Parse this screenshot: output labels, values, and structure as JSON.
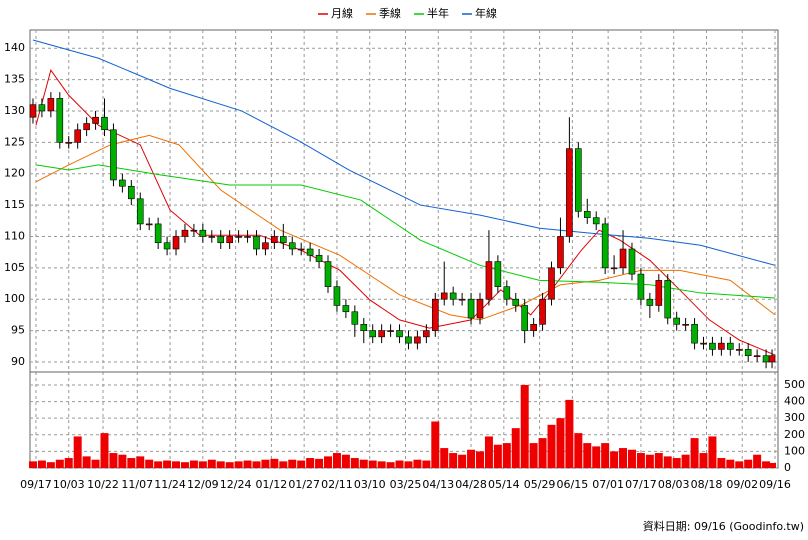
{
  "chart_data": {
    "type": "candlestick",
    "legend": "top",
    "grid": true,
    "up_color": "#e00000",
    "down_color": "#00b000",
    "volume_color": "#ee0000",
    "footer": "資料日期: 09/16  (Goodinfo.tw)",
    "xlim": [
      -1,
      250
    ],
    "xticks": [
      {
        "value": 1,
        "label": "09/17"
      },
      {
        "value": 12,
        "label": "10/03"
      },
      {
        "value": 23.5,
        "label": "10/22"
      },
      {
        "value": 35,
        "label": "11/07"
      },
      {
        "value": 46,
        "label": "11/24"
      },
      {
        "value": 57,
        "label": "12/09"
      },
      {
        "value": 68,
        "label": "12/24"
      },
      {
        "value": 80,
        "label": "01/12"
      },
      {
        "value": 91,
        "label": "01/27"
      },
      {
        "value": 102,
        "label": "02/11"
      },
      {
        "value": 113,
        "label": "03/10"
      },
      {
        "value": 125,
        "label": "03/25"
      },
      {
        "value": 136,
        "label": "04/13"
      },
      {
        "value": 147,
        "label": "04/28"
      },
      {
        "value": 158,
        "label": "05/14"
      },
      {
        "value": 170,
        "label": "05/29"
      },
      {
        "value": 181,
        "label": "06/15"
      },
      {
        "value": 193,
        "label": "07/01"
      },
      {
        "value": 204,
        "label": "07/17"
      },
      {
        "value": 215,
        "label": "08/03"
      },
      {
        "value": 226,
        "label": "08/18"
      },
      {
        "value": 238,
        "label": "09/02"
      },
      {
        "value": 249,
        "label": "09/16"
      }
    ],
    "ylim": [
      88.4,
      142.9
    ],
    "yticks": [
      90,
      95,
      100,
      105,
      110,
      115,
      120,
      125,
      130,
      135,
      140
    ],
    "y2lim": [
      0,
      578
    ],
    "y2ticks": [
      0,
      100,
      200,
      300,
      400,
      500
    ],
    "x": [
      0,
      3,
      6,
      9,
      12,
      15,
      18,
      21,
      24,
      27,
      30,
      33,
      36,
      39,
      42,
      45,
      48,
      51,
      54,
      57,
      60,
      63,
      66,
      69,
      72,
      75,
      78,
      81,
      84,
      87,
      90,
      93,
      96,
      99,
      102,
      105,
      108,
      111,
      114,
      117,
      120,
      123,
      126,
      129,
      132,
      135,
      138,
      141,
      144,
      147,
      150,
      153,
      156,
      159,
      162,
      165,
      168,
      171,
      174,
      177,
      180,
      183,
      186,
      189,
      192,
      195,
      198,
      201,
      204,
      207,
      210,
      213,
      216,
      219,
      222,
      225,
      228,
      231,
      234,
      237,
      240,
      243,
      246,
      248
    ],
    "open": [
      129,
      131,
      130,
      132,
      125,
      125,
      127,
      128,
      129,
      127,
      119,
      118,
      116,
      112,
      112,
      109,
      108,
      110,
      111,
      111,
      110,
      110,
      109,
      110,
      110,
      110,
      108,
      109,
      110,
      109,
      108,
      108,
      107,
      106,
      102,
      99,
      98,
      96,
      95,
      94,
      95,
      95,
      94,
      93,
      94,
      95,
      100,
      101,
      100,
      100,
      97,
      100,
      106,
      102,
      100,
      99,
      95,
      96,
      100,
      105,
      110,
      124,
      114,
      113,
      112,
      105,
      105,
      108,
      104,
      100,
      99,
      103,
      97,
      96,
      96,
      93,
      93,
      92,
      93,
      92,
      92,
      91,
      91,
      90
    ],
    "high": [
      132,
      132,
      133,
      133,
      126,
      128,
      129,
      130,
      132,
      128,
      120,
      119,
      117,
      113,
      113,
      110,
      111,
      112,
      112,
      112,
      111,
      111,
      111,
      111,
      111,
      111,
      110,
      111,
      112,
      110,
      109,
      109,
      108,
      107,
      103,
      100,
      99,
      97,
      96,
      96,
      96,
      96,
      95,
      95,
      96,
      101,
      106,
      102,
      101,
      101,
      101,
      111,
      107,
      103,
      101,
      100,
      97,
      101,
      106,
      113,
      129,
      125,
      116,
      114,
      113,
      107,
      111,
      109,
      105,
      101,
      104,
      104,
      98,
      97,
      97,
      94,
      94,
      94,
      94,
      93,
      93,
      92,
      92,
      92
    ],
    "low": [
      128,
      129,
      129,
      124,
      124,
      124,
      126,
      127,
      126,
      118,
      117,
      115,
      111,
      111,
      108,
      107,
      107,
      109,
      110,
      109,
      109,
      108,
      108,
      109,
      109,
      107,
      107,
      108,
      108,
      107,
      107,
      106,
      105,
      101,
      98,
      97,
      94,
      93,
      93,
      93,
      94,
      93,
      92,
      92,
      93,
      94,
      99,
      99,
      99,
      96,
      96,
      99,
      101,
      99,
      98,
      93,
      94,
      95,
      99,
      104,
      109,
      113,
      112,
      111,
      104,
      104,
      104,
      103,
      99,
      97,
      98,
      96,
      95,
      95,
      92,
      92,
      91,
      91,
      91,
      91,
      90,
      90,
      89,
      89
    ],
    "close": [
      131,
      130,
      132,
      125,
      125,
      127,
      128,
      129,
      127,
      119,
      118,
      116,
      112,
      112,
      109,
      108,
      110,
      111,
      111,
      110,
      110,
      109,
      110,
      110,
      110,
      108,
      109,
      110,
      109,
      108,
      108,
      107,
      106,
      102,
      99,
      98,
      96,
      95,
      94,
      95,
      95,
      94,
      93,
      94,
      95,
      100,
      101,
      100,
      100,
      97,
      100,
      106,
      102,
      100,
      99,
      95,
      96,
      100,
      105,
      110,
      124,
      114,
      113,
      112,
      105,
      105,
      108,
      104,
      100,
      99,
      103,
      97,
      96,
      96,
      93,
      93,
      92,
      93,
      92,
      92,
      91,
      91,
      90,
      91
    ],
    "volume": [
      40,
      45,
      35,
      50,
      60,
      190,
      70,
      50,
      210,
      90,
      80,
      60,
      70,
      50,
      40,
      45,
      40,
      35,
      45,
      40,
      50,
      40,
      35,
      40,
      45,
      40,
      50,
      55,
      40,
      50,
      45,
      60,
      55,
      70,
      90,
      80,
      60,
      50,
      45,
      40,
      35,
      45,
      40,
      50,
      45,
      280,
      120,
      90,
      80,
      110,
      100,
      190,
      140,
      150,
      240,
      500,
      150,
      180,
      260,
      300,
      410,
      210,
      150,
      130,
      150,
      100,
      120,
      110,
      90,
      80,
      90,
      70,
      60,
      80,
      180,
      90,
      190,
      60,
      50,
      40,
      50,
      80,
      40,
      30
    ],
    "series": [
      {
        "name": "月線",
        "color": "#e00000",
        "x": [
          1,
          6,
          12,
          22,
          36,
          46,
          56,
          76,
          90,
          103,
          113,
          123,
          133,
          147,
          157,
          167,
          174,
          184,
          190,
          197,
          207,
          217,
          227,
          237,
          249
        ],
        "values": [
          127.7,
          136.5,
          132.5,
          127.7,
          124.6,
          114.2,
          110.2,
          110.2,
          107.8,
          104.6,
          99.9,
          96.7,
          95.4,
          96.7,
          101.5,
          97.5,
          101.5,
          107.8,
          111,
          109.4,
          106.2,
          101.5,
          96.7,
          93.5,
          91.1
        ]
      },
      {
        "name": "季線",
        "color": "#f07000",
        "x": [
          1,
          12,
          26,
          39,
          49,
          63,
          83,
          103,
          123,
          140,
          150,
          164,
          177,
          190,
          204,
          217,
          234,
          249
        ],
        "values": [
          118.7,
          121.4,
          124.6,
          126.1,
          124.6,
          117.4,
          111,
          107,
          100.7,
          97.5,
          96.7,
          99.1,
          102.3,
          103,
          104.6,
          104.6,
          103,
          97.5
        ]
      },
      {
        "name": "半年",
        "color": "#00cc00",
        "x": [
          1,
          12,
          22,
          43,
          66,
          90,
          110,
          130,
          150,
          170,
          190,
          207,
          224,
          249
        ],
        "values": [
          121.4,
          120.6,
          121.4,
          119.8,
          118.2,
          118.2,
          115.8,
          109.4,
          105.4,
          103,
          102.7,
          102.3,
          101,
          100.2
        ]
      },
      {
        "name": "年線",
        "color": "#1060d0",
        "x": [
          0,
          22,
          46,
          70,
          89,
          106,
          130,
          150,
          170,
          190,
          207,
          224,
          249
        ],
        "values": [
          141.3,
          138.4,
          133.6,
          130,
          125.3,
          120.6,
          115,
          113.4,
          111.3,
          110.4,
          109.7,
          108.6,
          105.4
        ]
      }
    ]
  }
}
